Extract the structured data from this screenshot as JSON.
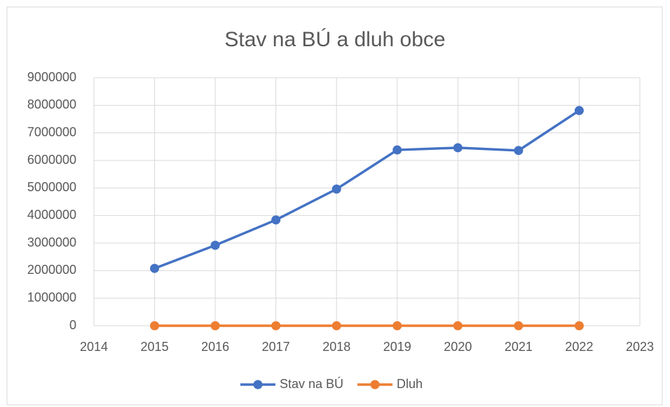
{
  "chart_data": {
    "type": "line",
    "title": "Stav na BÚ a dluh obce",
    "x": [
      2015,
      2016,
      2017,
      2018,
      2019,
      2020,
      2021,
      2022
    ],
    "series": [
      {
        "name": "Stav na BÚ",
        "color": "#4472c4",
        "values": [
          2080000,
          2920000,
          3840000,
          4960000,
          6380000,
          6460000,
          6360000,
          7810000
        ]
      },
      {
        "name": "Dluh",
        "color": "#ed7d31",
        "values": [
          0,
          0,
          0,
          0,
          0,
          0,
          0,
          0
        ]
      }
    ],
    "xlim": [
      2014,
      2023
    ],
    "xticks": [
      2014,
      2015,
      2016,
      2017,
      2018,
      2019,
      2020,
      2021,
      2022,
      2023
    ],
    "ylim": [
      0,
      9000000
    ],
    "yticks": [
      0,
      1000000,
      2000000,
      3000000,
      4000000,
      5000000,
      6000000,
      7000000,
      8000000,
      9000000
    ],
    "grid": true,
    "legend": "bottom"
  }
}
